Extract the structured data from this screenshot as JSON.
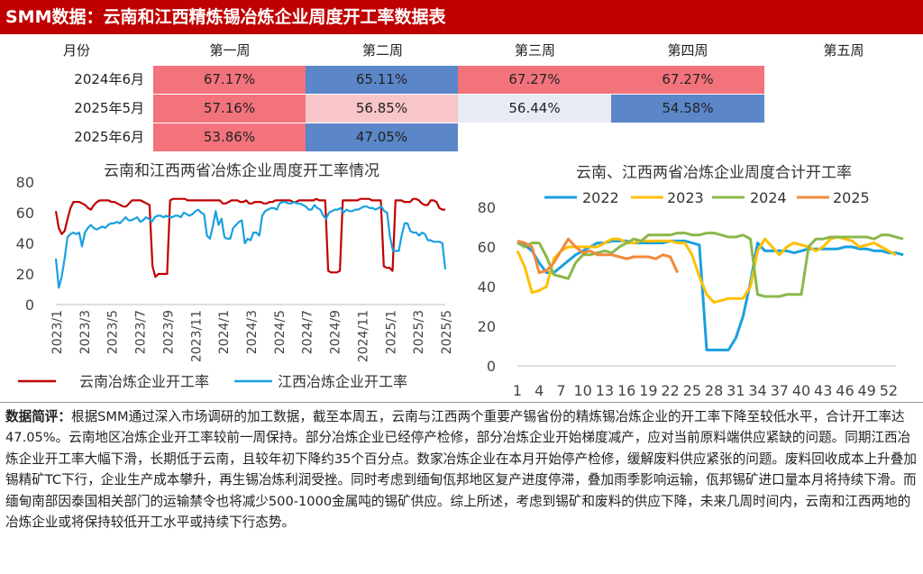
{
  "header": {
    "title": "SMM数据：云南和江西精炼锡冶炼企业周度开工率数据表"
  },
  "table": {
    "corner_label": "月份",
    "columns": [
      "第一周",
      "第二周",
      "第三周",
      "第四周",
      "第五周"
    ],
    "rows": [
      {
        "label": "2024年6月",
        "cells": [
          {
            "text": "67.17%",
            "color": "#f2737c"
          },
          {
            "text": "65.11%",
            "color": "#5b86c8"
          },
          {
            "text": "67.27%",
            "color": "#f2737c"
          },
          {
            "text": "67.27%",
            "color": "#f2737c"
          },
          {
            "text": "",
            "color": "#ffffff"
          }
        ]
      },
      {
        "label": "2025年5月",
        "cells": [
          {
            "text": "57.16%",
            "color": "#f2737c"
          },
          {
            "text": "56.85%",
            "color": "#f8c6c8"
          },
          {
            "text": "56.44%",
            "color": "#e8eaf4"
          },
          {
            "text": "54.58%",
            "color": "#5b86c8"
          },
          {
            "text": "",
            "color": "#ffffff"
          }
        ]
      },
      {
        "label": "2025年6月",
        "cells": [
          {
            "text": "53.86%",
            "color": "#f2737c"
          },
          {
            "text": "47.05%",
            "color": "#5b86c8"
          },
          {
            "text": "",
            "color": "#ffffff"
          },
          {
            "text": "",
            "color": "#ffffff"
          },
          {
            "text": "",
            "color": "#ffffff"
          }
        ]
      }
    ]
  },
  "chart_data": [
    {
      "type": "line",
      "title": "云南和江西两省冶炼企业周度开工率情况",
      "ylim": [
        0,
        80
      ],
      "yticks": [
        0,
        20,
        40,
        60,
        80
      ],
      "xticks": [
        "2023/1",
        "2023/3",
        "2023/5",
        "2023/7",
        "2023/9",
        "2023/11",
        "2024/1",
        "2024/3",
        "2024/5",
        "2024/7",
        "2024/9",
        "2024/11",
        "2025/1",
        "2025/3",
        "2025/5"
      ],
      "legend_position": "bottom",
      "series": [
        {
          "name": "云南冶炼企业开工率",
          "color": "#c00000",
          "values": [
            61,
            50,
            46,
            48,
            56,
            63,
            67,
            67,
            67,
            66,
            65,
            63,
            62,
            65,
            67,
            68,
            68,
            68,
            68,
            67,
            67,
            66,
            65,
            64,
            64,
            66,
            68,
            68,
            68,
            68,
            67,
            66,
            65,
            25,
            18,
            20,
            20,
            20,
            20,
            68,
            69,
            69,
            69,
            69,
            69,
            68,
            68,
            68,
            68,
            68,
            68,
            68,
            68,
            68,
            68,
            68,
            68,
            66,
            66,
            67,
            68,
            68,
            68,
            67,
            67,
            68,
            66,
            66,
            67,
            67,
            67,
            66,
            66,
            67,
            67,
            68,
            68,
            68,
            68,
            68,
            68,
            67,
            67,
            68,
            68,
            68,
            68,
            68,
            68,
            69,
            68,
            68,
            68,
            22,
            21,
            21,
            21,
            22,
            68,
            68,
            68,
            68,
            68,
            68,
            69,
            69,
            69,
            69,
            68,
            68,
            68,
            68,
            25,
            24,
            24,
            22,
            68,
            68,
            68,
            67,
            67,
            67,
            69,
            69,
            68,
            66,
            65,
            65,
            68,
            68,
            67,
            63,
            62,
            62
          ]
        },
        {
          "name": "江西冶炼企业开工率",
          "color": "#1aa0e0",
          "values": [
            30,
            11,
            18,
            30,
            44,
            46,
            47,
            46,
            47,
            38,
            47,
            50,
            52,
            50,
            49,
            50,
            51,
            50,
            52,
            53,
            53,
            54,
            53,
            55,
            57,
            55,
            55,
            56,
            57,
            54,
            55,
            57,
            56,
            54,
            57,
            58,
            58,
            57,
            58,
            57,
            57,
            58,
            58,
            57,
            60,
            59,
            58,
            59,
            61,
            62,
            60,
            59,
            45,
            43,
            51,
            61,
            52,
            56,
            44,
            43,
            43,
            50,
            52,
            54,
            55,
            40,
            43,
            42,
            47,
            47,
            45,
            58,
            61,
            62,
            63,
            63,
            62,
            66,
            67,
            67,
            66,
            66,
            67,
            66,
            66,
            65,
            64,
            62,
            62,
            65,
            63,
            62,
            58,
            56,
            60,
            61,
            62,
            62,
            63,
            60,
            62,
            61,
            61,
            62,
            62,
            63,
            64,
            64,
            63,
            63,
            62,
            63,
            64,
            61,
            60,
            44,
            35,
            35,
            35,
            45,
            53,
            53,
            48,
            47,
            47,
            45,
            47,
            46,
            42,
            42,
            41,
            41,
            41,
            40,
            23
          ]
        }
      ]
    },
    {
      "type": "line",
      "title": "云南、江西两省冶炼企业周度合计开工率",
      "ylim": [
        0,
        80
      ],
      "yticks": [
        0,
        20,
        40,
        60,
        80
      ],
      "xticks": [
        "1",
        "4",
        "7",
        "10",
        "13",
        "16",
        "19",
        "22",
        "25",
        "28",
        "31",
        "34",
        "37",
        "40",
        "43",
        "46",
        "49",
        "52"
      ],
      "legend_position": "top",
      "series": [
        {
          "name": "2022",
          "color": "#1aa0e0",
          "values": [
            62,
            61,
            58,
            52,
            47,
            47,
            50,
            53,
            56,
            58,
            60,
            62,
            62,
            63,
            63,
            63,
            62,
            62,
            62,
            62,
            62,
            63,
            63,
            63,
            62,
            61,
            8,
            8,
            8,
            8,
            14,
            25,
            42,
            62,
            58,
            58,
            58,
            58,
            57,
            58,
            59,
            59,
            59,
            59,
            59,
            60,
            60,
            59,
            59,
            58,
            58,
            57,
            57,
            56
          ]
        },
        {
          "name": "2023",
          "color": "#ffc000",
          "values": [
            58,
            50,
            37,
            38,
            40,
            54,
            58,
            60,
            60,
            60,
            60,
            60,
            62,
            64,
            64,
            62,
            62,
            63,
            63,
            63,
            63,
            63,
            62,
            62,
            56,
            45,
            36,
            32,
            33,
            34,
            34,
            34,
            40,
            58,
            64,
            60,
            56,
            60,
            62,
            61,
            60,
            58,
            60,
            64,
            65,
            64,
            63,
            60,
            61,
            62,
            60,
            58,
            56
          ]
        },
        {
          "name": "2024",
          "color": "#8bb84a",
          "values": [
            62,
            60,
            62,
            62,
            55,
            46,
            45,
            44,
            52,
            56,
            56,
            57,
            58,
            57,
            60,
            62,
            64,
            63,
            66,
            66,
            66,
            66,
            67,
            67,
            66,
            66,
            67,
            67,
            66,
            65,
            65,
            66,
            64,
            36,
            35,
            35,
            35,
            36,
            36,
            36,
            60,
            64,
            64,
            65,
            65,
            65,
            65,
            65,
            65,
            64,
            66,
            66,
            65,
            64
          ]
        },
        {
          "name": "2025",
          "color": "#f08a3c",
          "values": [
            63,
            62,
            60,
            47,
            48,
            52,
            58,
            64,
            60,
            57,
            58,
            56,
            56,
            56,
            55,
            54,
            55,
            55,
            55,
            54,
            56,
            55,
            47
          ]
        }
      ]
    }
  ],
  "commentary": {
    "label": "数据简评：",
    "text": "根据SMM通过深入市场调研的加工数据，截至本周五，云南与江西两个重要产锡省份的精炼锡冶炼企业的开工率下降至较低水平，合计开工率达47.05%。云南地区冶炼企业开工率较前一周保持。部分冶炼企业已经停产检修，部分冶炼企业开始梯度减产，应对当前原料端供应紧缺的问题。同期江西冶炼企业开工率大幅下滑，长期低于云南，且较年初下降约35个百分点。数家冶炼企业在本月开始停产检修，缓解废料供应紧张的问题。废料回收成本上升叠加锡精矿TC下行，企业生产成本攀升，再生锡冶炼利润受挫。同时考虑到缅甸佤邦地区复产进度停滞，叠加雨季影响运输，佤邦锡矿进口量本月将持续下滑。而缅甸南部因泰国相关部门的运输禁令也将减少500-1000金属吨的锡矿供应。综上所述，考虑到锡矿和废料的供应下降，未来几周时间内，云南和江西两地的冶炼企业或将保持较低开工水平或持续下行态势。"
  }
}
